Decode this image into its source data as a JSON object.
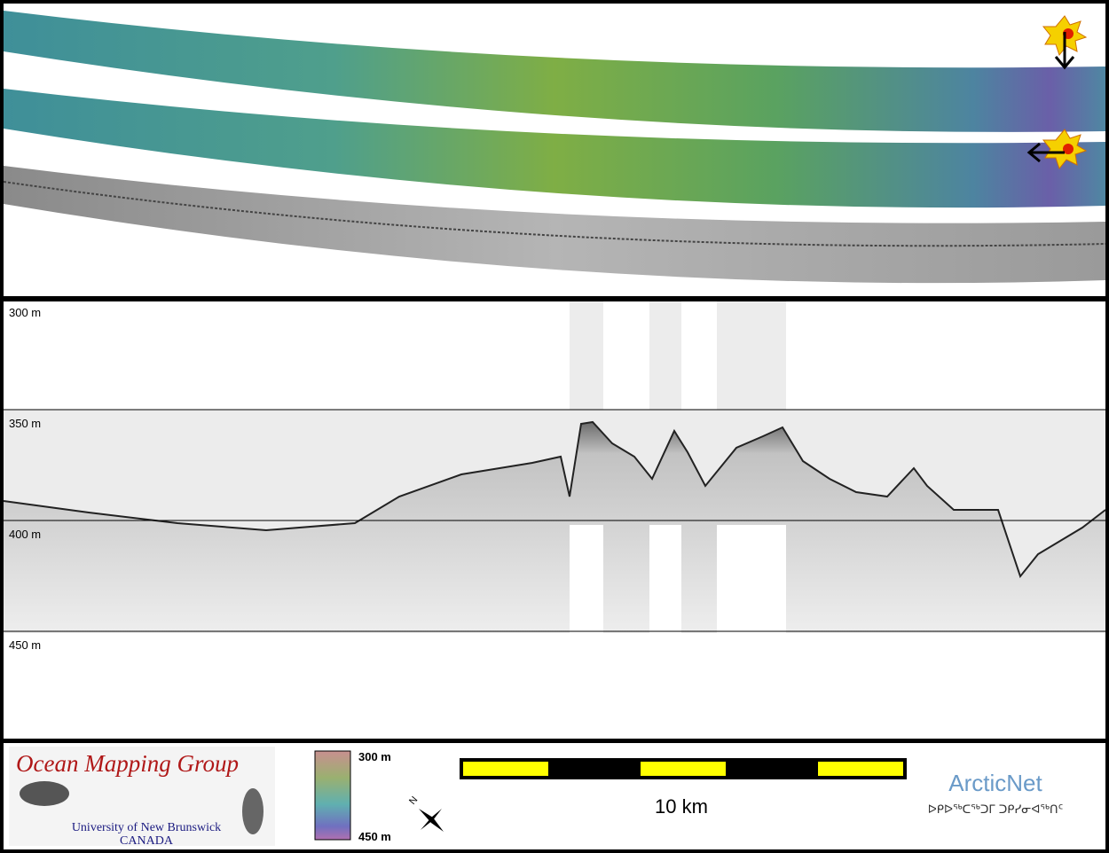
{
  "depth_labels": [
    "300 m",
    "350 m",
    "400 m",
    "450 m"
  ],
  "logo": {
    "title": "Ocean Mapping Group",
    "university": "University of New Brunswick",
    "country": "CANADA"
  },
  "colorbar": {
    "top": "300 m",
    "bottom": "450 m"
  },
  "north": "N",
  "scale_bar": "10 km",
  "partner": {
    "name": "ArcticNet",
    "syllabics": "ᐅᑭᐅᖅᑕᖅᑐᒥ ᑐᑭᓯᓂᐊᖅᑎᑦ"
  }
}
